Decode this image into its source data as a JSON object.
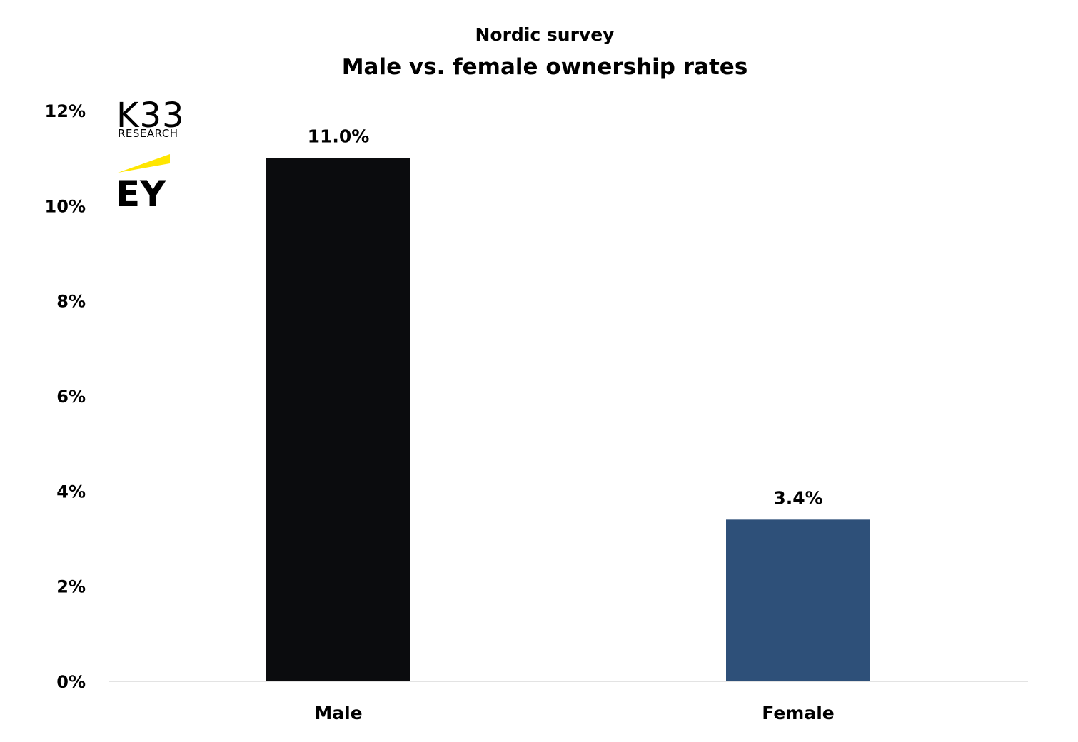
{
  "chart_data": {
    "type": "bar",
    "subtitle": "Nordic survey",
    "title": "Male vs. female ownership rates",
    "categories": [
      "Male",
      "Female"
    ],
    "values": [
      11.0,
      3.4
    ],
    "value_labels": [
      "11.0%",
      "3.4%"
    ],
    "bar_colors": [
      "#0b0c0e",
      "#2e5079"
    ],
    "ylim": [
      0,
      12
    ],
    "yticks": [
      0,
      2,
      4,
      6,
      8,
      10,
      12
    ],
    "ytick_labels": [
      "0%",
      "2%",
      "4%",
      "6%",
      "8%",
      "10%",
      "12%"
    ],
    "xlabel": "",
    "ylabel": "",
    "grid": false,
    "legend": "none"
  },
  "logos": {
    "k33": "K33",
    "k33_sub": "RESEARCH",
    "ey": "EY",
    "ey_accent_color": "#ffe600"
  }
}
